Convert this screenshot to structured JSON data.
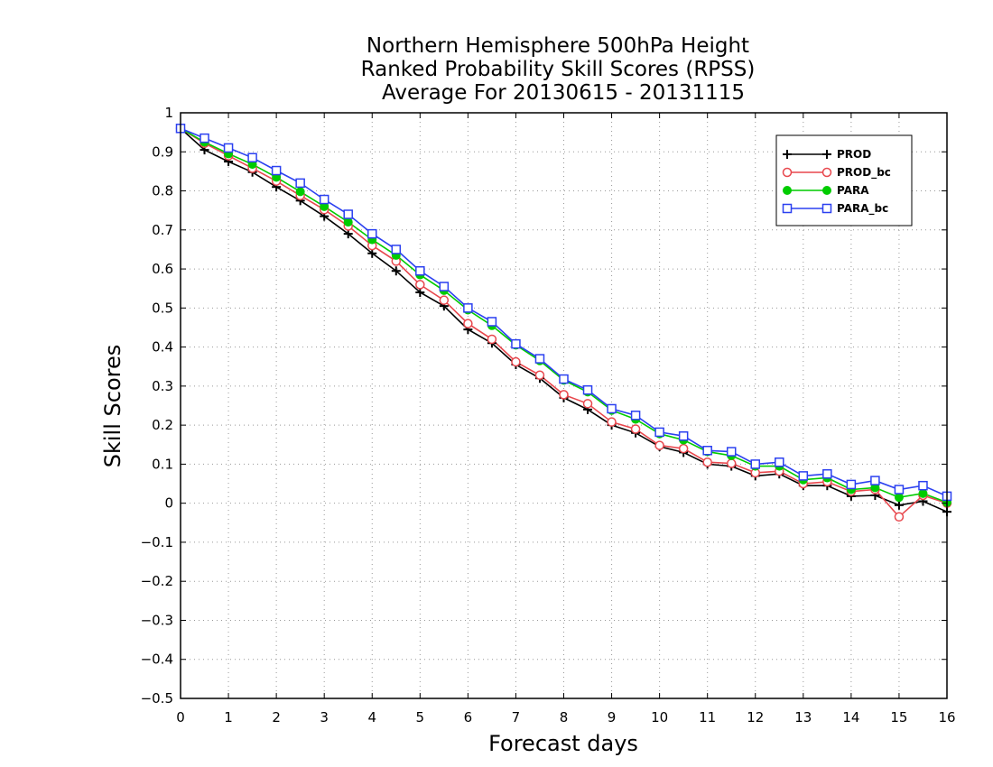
{
  "chart_data": {
    "type": "line",
    "title": [
      "Northern Hemisphere 500hPa Height",
      "Ranked Probability Skill Scores (RPSS)",
      "Average For 20130615 - 20131115"
    ],
    "xlabel": "Forecast days",
    "ylabel": "Skill Scores",
    "xlim": [
      0,
      16
    ],
    "ylim": [
      -0.5,
      1
    ],
    "x_ticks": [
      0,
      1,
      2,
      3,
      4,
      5,
      6,
      7,
      8,
      9,
      10,
      11,
      12,
      13,
      14,
      15,
      16
    ],
    "y_ticks": [
      -0.5,
      -0.4,
      -0.3,
      -0.2,
      -0.1,
      0,
      0.1,
      0.2,
      0.3,
      0.4,
      0.5,
      0.6,
      0.7,
      0.8,
      0.9,
      1
    ],
    "x_tick_labels": [
      "0",
      "1",
      "2",
      "3",
      "4",
      "5",
      "6",
      "7",
      "8",
      "9",
      "10",
      "11",
      "12",
      "13",
      "14",
      "15",
      "16"
    ],
    "y_tick_labels": [
      "−0.5",
      "−0.4",
      "−0.3",
      "−0.2",
      "−0.1",
      "0",
      "0.1",
      "0.2",
      "0.3",
      "0.4",
      "0.5",
      "0.6",
      "0.7",
      "0.8",
      "0.9",
      "1"
    ],
    "grid": true,
    "legend_position": "top-right",
    "x": [
      0,
      0.5,
      1,
      1.5,
      2,
      2.5,
      3,
      3.5,
      4,
      4.5,
      5,
      5.5,
      6,
      6.5,
      7,
      7.5,
      8,
      8.5,
      9,
      9.5,
      10,
      10.5,
      11,
      11.5,
      12,
      12.5,
      13,
      13.5,
      14,
      14.5,
      15,
      15.5,
      16
    ],
    "series": [
      {
        "name": "PROD",
        "color": "#000000",
        "marker": "plus",
        "values": [
          0.96,
          0.905,
          0.875,
          0.848,
          0.81,
          0.775,
          0.735,
          0.69,
          0.64,
          0.595,
          0.54,
          0.505,
          0.445,
          0.41,
          0.355,
          0.32,
          0.27,
          0.24,
          0.2,
          0.18,
          0.145,
          0.13,
          0.1,
          0.095,
          0.07,
          0.075,
          0.045,
          0.045,
          0.018,
          0.02,
          -0.005,
          0.005,
          -0.022
        ]
      },
      {
        "name": "PROD_bc",
        "color": "#e8474d",
        "marker": "open-circle",
        "values": [
          0.96,
          0.922,
          0.89,
          0.858,
          0.825,
          0.788,
          0.752,
          0.71,
          0.66,
          0.62,
          0.56,
          0.52,
          0.46,
          0.42,
          0.362,
          0.328,
          0.278,
          0.255,
          0.208,
          0.19,
          0.148,
          0.14,
          0.105,
          0.102,
          0.078,
          0.082,
          0.05,
          0.055,
          0.03,
          0.035,
          -0.035,
          0.02,
          0.0
        ]
      },
      {
        "name": "PARA",
        "color": "#00cc00",
        "marker": "filled-circle",
        "values": [
          0.96,
          0.925,
          0.895,
          0.868,
          0.835,
          0.798,
          0.76,
          0.72,
          0.675,
          0.635,
          0.585,
          0.545,
          0.495,
          0.455,
          0.405,
          0.365,
          0.315,
          0.285,
          0.238,
          0.215,
          0.178,
          0.162,
          0.132,
          0.122,
          0.095,
          0.095,
          0.06,
          0.065,
          0.035,
          0.04,
          0.015,
          0.025,
          0.002
        ]
      },
      {
        "name": "PARA_bc",
        "color": "#2b40f0",
        "marker": "open-square",
        "values": [
          0.96,
          0.935,
          0.91,
          0.885,
          0.852,
          0.82,
          0.778,
          0.74,
          0.69,
          0.65,
          0.595,
          0.555,
          0.5,
          0.465,
          0.408,
          0.37,
          0.318,
          0.29,
          0.242,
          0.225,
          0.182,
          0.172,
          0.135,
          0.132,
          0.1,
          0.105,
          0.07,
          0.075,
          0.048,
          0.058,
          0.035,
          0.045,
          0.018
        ]
      }
    ]
  }
}
